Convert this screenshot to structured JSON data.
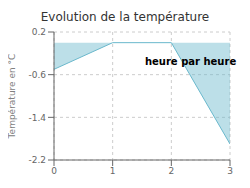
{
  "chart_data": {
    "type": "area",
    "title": "Evolution de la température",
    "y_label": "Température en °C",
    "annotations": [
      {
        "text": "heure par heure",
        "x": 1.55,
        "y": -0.35
      }
    ],
    "x": [
      0,
      1,
      2,
      3
    ],
    "values": [
      -0.5,
      0.0,
      0.0,
      -1.9
    ],
    "color": "#6ab8cc",
    "xlim": [
      0,
      3
    ],
    "ylim": [
      -2.2,
      0.2
    ],
    "xticks": [
      0,
      1,
      2,
      3
    ],
    "yticks": [
      0.2,
      -0.6,
      -1.4,
      -2.2
    ],
    "grid": true
  }
}
